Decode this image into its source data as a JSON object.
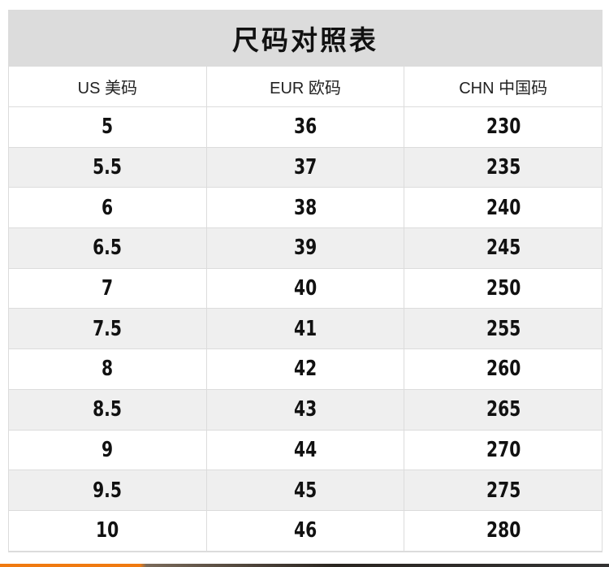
{
  "title": "尺码对照表",
  "headers": [
    "US 美码",
    "EUR 欧码",
    "CHN 中国码"
  ],
  "rows": [
    [
      "5",
      "36",
      "230"
    ],
    [
      "5.5",
      "37",
      "235"
    ],
    [
      "6",
      "38",
      "240"
    ],
    [
      "6.5",
      "39",
      "245"
    ],
    [
      "7",
      "40",
      "250"
    ],
    [
      "7.5",
      "41",
      "255"
    ],
    [
      "8",
      "42",
      "260"
    ],
    [
      "8.5",
      "43",
      "265"
    ],
    [
      "9",
      "44",
      "270"
    ],
    [
      "9.5",
      "45",
      "275"
    ],
    [
      "10",
      "46",
      "280"
    ]
  ]
}
